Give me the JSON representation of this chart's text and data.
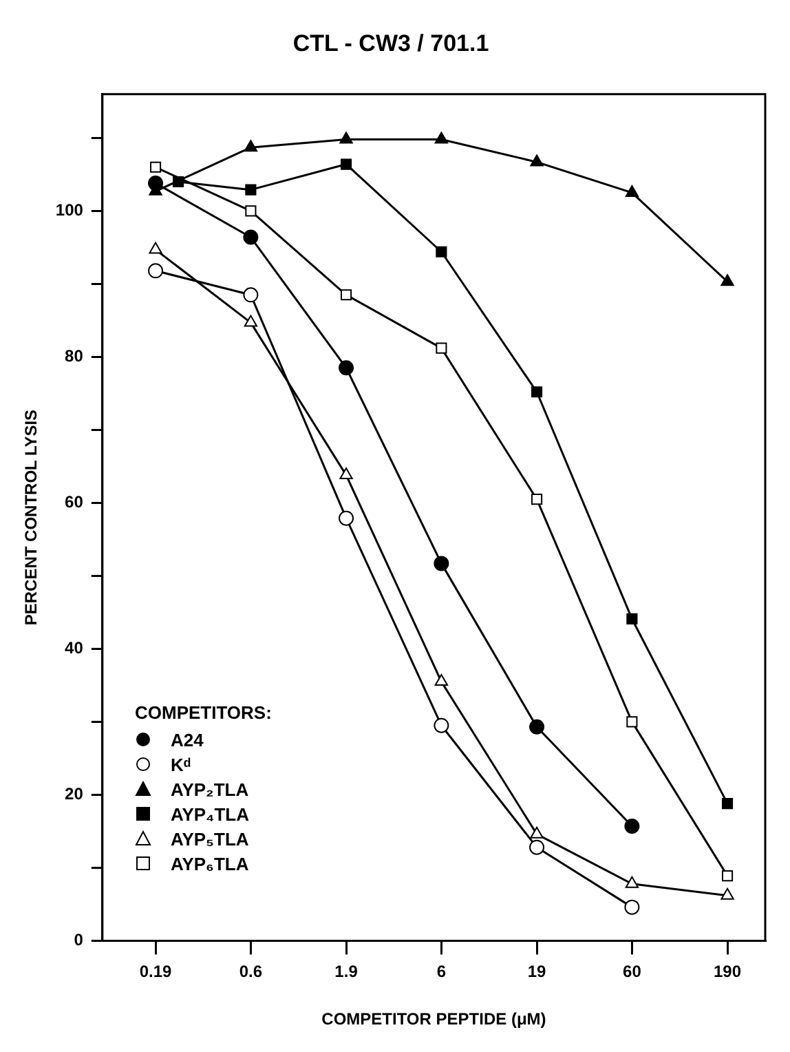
{
  "chart_data": {
    "type": "line",
    "title": "CTL - CW3 / 701.1",
    "xlabel": "COMPETITOR PEPTIDE (μM)",
    "ylabel": "PERCENT CONTROL LYSIS",
    "legend_title": "COMPETITORS:",
    "x": [
      0.19,
      0.6,
      1.9,
      6,
      19,
      60,
      190
    ],
    "series": [
      {
        "name": "A24",
        "color": "#000000",
        "marker": "circle",
        "values": [
          103.8,
          96.4,
          78.5,
          51.7,
          29.3,
          15.7,
          null
        ]
      },
      {
        "name": "Kᵈ",
        "color": "#000000",
        "marker": "circle",
        "colors": [
          "#ffffff",
          "#ffffff",
          "#ffffff",
          "#ffffff",
          "#ffffff",
          "#ffffff",
          "#ffffff"
        ],
        "values": [
          91.8,
          88.5,
          57.9,
          29.5,
          12.8,
          4.6,
          null
        ]
      },
      {
        "name": "AYP₂TLA",
        "color": "#000000",
        "marker": "triangle",
        "values": [
          102.7,
          108.7,
          109.8,
          109.8,
          106.7,
          102.5,
          90.3
        ]
      },
      {
        "name": "AYP₄TLA",
        "color": "#000000",
        "marker": "square",
        "x": [
          0.25,
          0.6,
          1.9,
          6,
          19,
          60,
          190
        ],
        "values": [
          104,
          102.9,
          106.4,
          94.4,
          75.2,
          44.1,
          18.8
        ]
      },
      {
        "name": "AYP₅TLA",
        "color": "#000000",
        "marker": "triangle",
        "colors": [
          "#ffffff",
          "#ffffff",
          "#ffffff",
          "#ffffff",
          "#ffffff",
          "#ffffff",
          "#ffffff"
        ],
        "values": [
          94.7,
          84.7,
          63.8,
          35.5,
          14.6,
          7.8,
          6.2
        ]
      },
      {
        "name": "AYP₆TLA",
        "color": "#000000",
        "marker": "square",
        "colors": [
          "#ffffff",
          "#ffffff",
          "#ffffff",
          "#ffffff",
          "#ffffff",
          "#ffffff",
          "#ffffff"
        ],
        "values": [
          106,
          100,
          88.5,
          81.2,
          60.5,
          30,
          8.9
        ]
      }
    ],
    "log": "x",
    "xlim": [
      0.1,
      300
    ],
    "xticks": [
      0.19,
      0.6,
      1.9,
      6,
      19,
      60,
      190
    ],
    "ylim": [
      0,
      116
    ],
    "yticks": [
      0,
      {
        "value": 10,
        "label": null
      },
      20,
      {
        "value": 30,
        "label": null
      },
      40,
      {
        "value": 50,
        "label": null
      },
      60,
      {
        "value": 70,
        "label": null
      },
      80,
      {
        "value": 90,
        "label": null
      },
      100,
      {
        "value": 110,
        "label": null
      }
    ],
    "grid": false,
    "legend": "bottom left",
    "line_style": "solid"
  }
}
